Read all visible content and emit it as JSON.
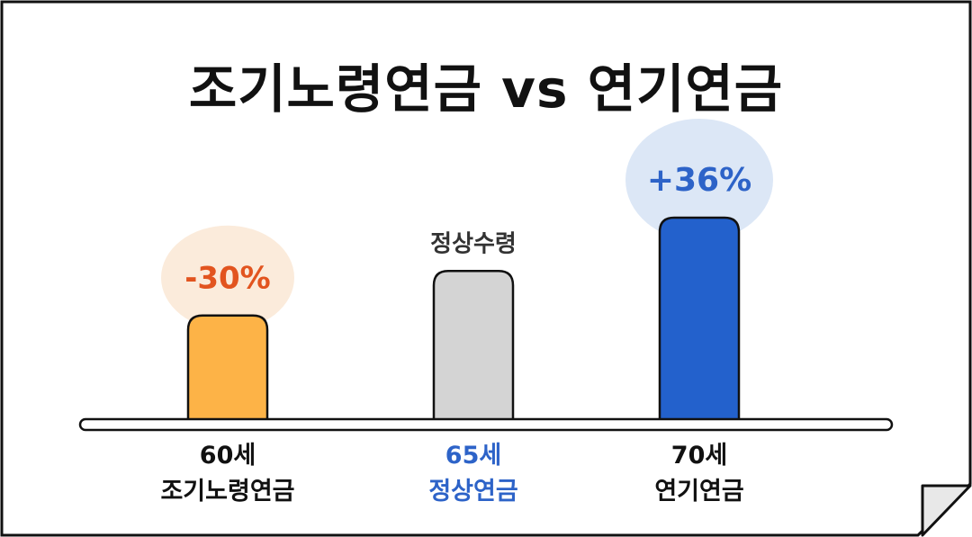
{
  "title": "조기노령연금 vs 연기연금",
  "colors": {
    "early": "#FDB347",
    "normal": "#D4D4D4",
    "delayed": "#2361CC",
    "early_text": "#E2541F",
    "delayed_text": "#2D63C8",
    "early_bubble": "#FBEBDB",
    "delayed_bubble": "#DCE7F6",
    "normal_label_text": "#2D63C8"
  },
  "chart_data": {
    "type": "bar",
    "categories": [
      "60세 조기노령연금",
      "65세 정상연금",
      "70세 연기연금"
    ],
    "values": [
      70,
      100,
      136
    ],
    "bar_labels": [
      "-30%",
      "정상수령",
      "+36%"
    ],
    "ylim": [
      0,
      136
    ],
    "grid": false
  },
  "categories": [
    {
      "age": "60세",
      "name": "조기노령연금"
    },
    {
      "age": "65세",
      "name": "정상연금"
    },
    {
      "age": "70세",
      "name": "연기연금"
    }
  ]
}
